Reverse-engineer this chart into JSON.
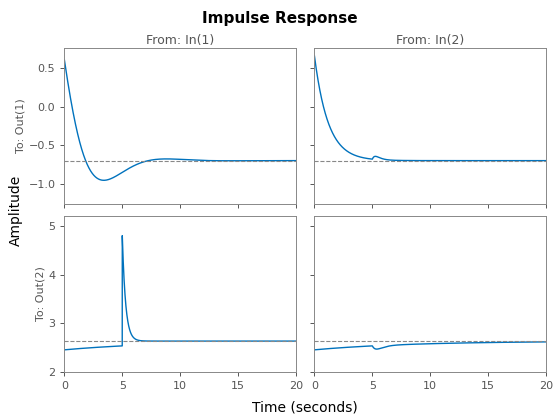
{
  "title": "Impulse Response",
  "xlabel": "Time (seconds)",
  "ylabel": "Amplitude",
  "line_color": "#0072BD",
  "line_width": 1.0,
  "axes": [
    {
      "row": 0,
      "col": 0,
      "title": "From: In(1)",
      "ylabel": "To: Out(1)",
      "xlim": [
        0,
        20
      ],
      "ylim": [
        -1.25,
        0.75
      ],
      "yticks": [
        -1.0,
        -0.5,
        0.0,
        0.5
      ],
      "xticks": [
        0,
        5,
        10,
        15,
        20
      ],
      "hline": -0.695
    },
    {
      "row": 0,
      "col": 1,
      "title": "From: In(2)",
      "ylabel": null,
      "xlim": [
        0,
        20
      ],
      "ylim": [
        -1.25,
        0.75
      ],
      "yticks": [
        -1.0,
        -0.5,
        0.0,
        0.5
      ],
      "xticks": [
        0,
        5,
        10,
        15,
        20
      ],
      "hline": -0.695
    },
    {
      "row": 1,
      "col": 0,
      "title": null,
      "ylabel": "To: Out(2)",
      "xlim": [
        0,
        20
      ],
      "ylim": [
        2.0,
        5.2
      ],
      "yticks": [
        2,
        3,
        4,
        5
      ],
      "xticks": [
        0,
        5,
        10,
        15,
        20
      ],
      "hline": 2.63
    },
    {
      "row": 1,
      "col": 1,
      "title": null,
      "ylabel": null,
      "xlim": [
        0,
        20
      ],
      "ylim": [
        2.0,
        5.2
      ],
      "yticks": [
        2,
        3,
        4,
        5
      ],
      "xticks": [
        0,
        5,
        10,
        15,
        20
      ],
      "hline": 2.63
    }
  ]
}
